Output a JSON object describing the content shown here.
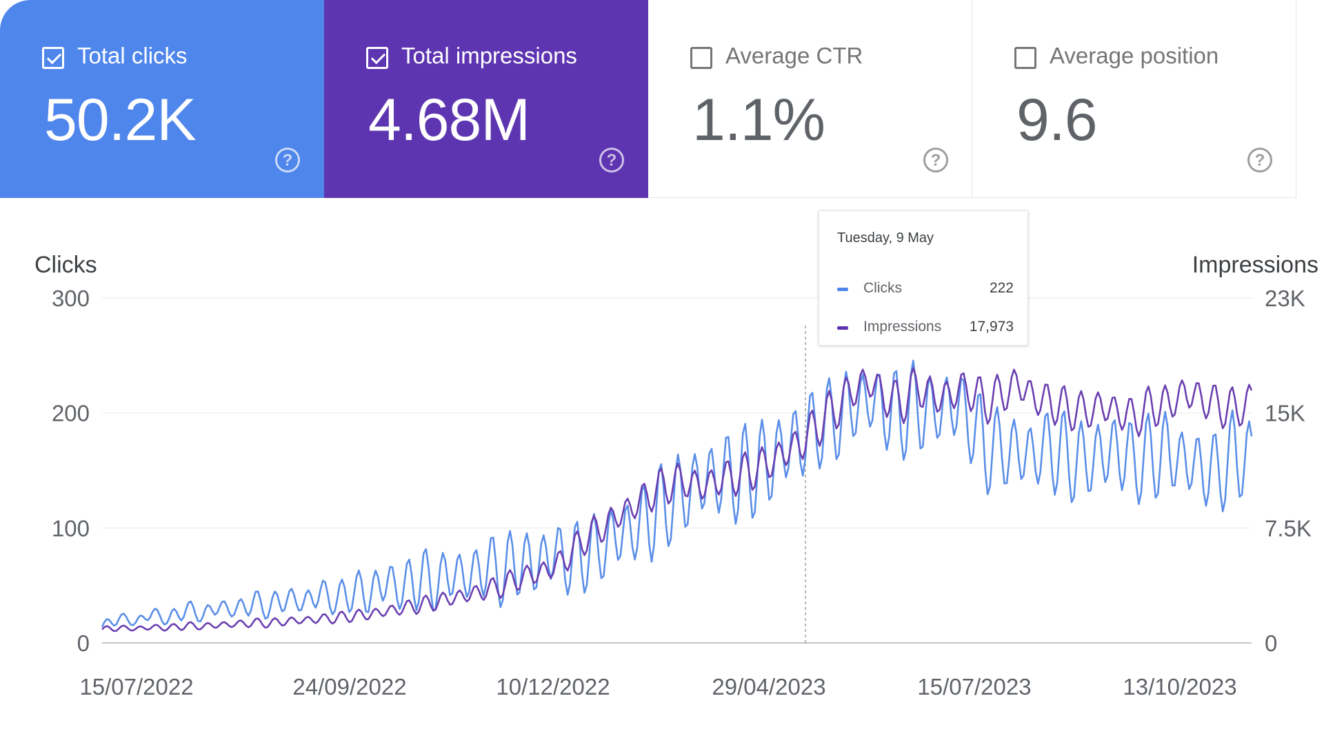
{
  "metrics": [
    {
      "label": "Total clicks",
      "value": "50.2K",
      "checked": true,
      "color": "#4f86ec"
    },
    {
      "label": "Total impressions",
      "value": "4.68M",
      "checked": true,
      "color": "#5e35b1"
    },
    {
      "label": "Average CTR",
      "value": "1.1%",
      "checked": false
    },
    {
      "label": "Average position",
      "value": "9.6",
      "checked": false
    }
  ],
  "help_glyph": "?",
  "tooltip": {
    "date": "Tuesday, 9 May",
    "rows": [
      {
        "name": "Clicks",
        "value": "222",
        "color": "#4f86ec"
      },
      {
        "name": "Impressions",
        "value": "17,973",
        "color": "#5e35b1"
      }
    ]
  },
  "chart_data": {
    "type": "line",
    "left_axis_title": "Clicks",
    "right_axis_title": "Impressions",
    "y_left_ticks": [
      "0",
      "100",
      "200",
      "300"
    ],
    "y_left_range": [
      0,
      300
    ],
    "y_right_ticks": [
      "0",
      "7.5K",
      "15K",
      "23K"
    ],
    "y_right_range": [
      0,
      23000
    ],
    "x_ticks": [
      "15/07/2022",
      "24/09/2022",
      "10/12/2022",
      "29/04/2023",
      "15/07/2023",
      "13/10/2023"
    ],
    "grid": true,
    "hover_date": "Tuesday, 9 May",
    "series": [
      {
        "name": "Clicks",
        "axis": "left",
        "color": "#5a8ee8",
        "values": [
          14,
          22,
          18,
          26,
          20,
          30,
          24,
          32,
          28,
          36,
          30,
          40,
          34,
          44,
          36,
          46,
          42,
          54,
          46,
          58,
          50,
          62,
          56,
          68,
          60,
          72,
          66,
          80,
          70,
          78,
          82,
          96,
          98,
          112,
          120,
          132,
          140,
          146,
          144,
          150,
          156,
          170,
          178,
          188,
          194,
          206,
          212,
          204,
          198,
          206,
          200,
          210,
          196,
          170,
          168,
          166,
          164,
          170,
          160,
          158,
          164,
          168,
          156,
          162,
          166,
          158,
          152,
          148,
          164,
          160
        ],
        "amp": [
          3,
          5,
          4,
          6,
          5,
          7,
          6,
          8,
          7,
          10,
          8,
          12,
          9,
          14,
          10,
          16,
          18,
          22,
          18,
          24,
          20,
          24,
          22,
          26,
          24,
          28,
          26,
          30,
          26,
          28,
          26,
          32,
          30,
          36,
          30,
          34,
          32,
          36,
          34,
          36,
          38,
          36,
          34,
          30,
          32,
          34,
          30,
          34,
          32,
          36,
          30,
          34,
          32,
          34,
          30,
          32,
          30,
          34,
          32,
          30,
          34,
          36,
          30,
          32,
          34,
          30,
          32,
          30,
          34,
          32
        ]
      },
      {
        "name": "Impressions",
        "axis": "right",
        "color": "#6a3fb0",
        "values": [
          900,
          1000,
          950,
          1050,
          1000,
          1150,
          1100,
          1200,
          1250,
          1350,
          1300,
          1450,
          1500,
          1600,
          1650,
          1800,
          1900,
          2100,
          2300,
          2500,
          2700,
          3000,
          3200,
          3500,
          3800,
          4300,
          4600,
          5000,
          5800,
          7000,
          7700,
          8500,
          9200,
          10000,
          10600,
          10800,
          10400,
          10900,
          11100,
          11500,
          12000,
          12700,
          13400,
          14600,
          15600,
          16800,
          17500,
          16400,
          16000,
          17200,
          16300,
          16600,
          17000,
          16000,
          16600,
          17300,
          16300,
          16000,
          15600,
          15400,
          15800,
          15400,
          15000,
          15800,
          15900,
          16700,
          16300,
          15800,
          15600,
          16100
        ],
        "amp": [
          150,
          180,
          160,
          200,
          180,
          220,
          200,
          240,
          220,
          260,
          240,
          280,
          260,
          300,
          300,
          340,
          360,
          400,
          420,
          460,
          480,
          520,
          560,
          600,
          640,
          700,
          760,
          820,
          860,
          900,
          960,
          1000,
          1040,
          1080,
          1100,
          1080,
          1100,
          1120,
          1100,
          1140,
          1160,
          1200,
          1240,
          1260,
          1280,
          1300,
          1280,
          1240,
          1200,
          1260,
          1220,
          1240,
          1260,
          1220,
          1240,
          1260,
          1220,
          1200,
          1180,
          1200,
          1220,
          1180,
          1160,
          1200,
          1220,
          1240,
          1200,
          1180,
          1160,
          1200
        ]
      }
    ]
  }
}
